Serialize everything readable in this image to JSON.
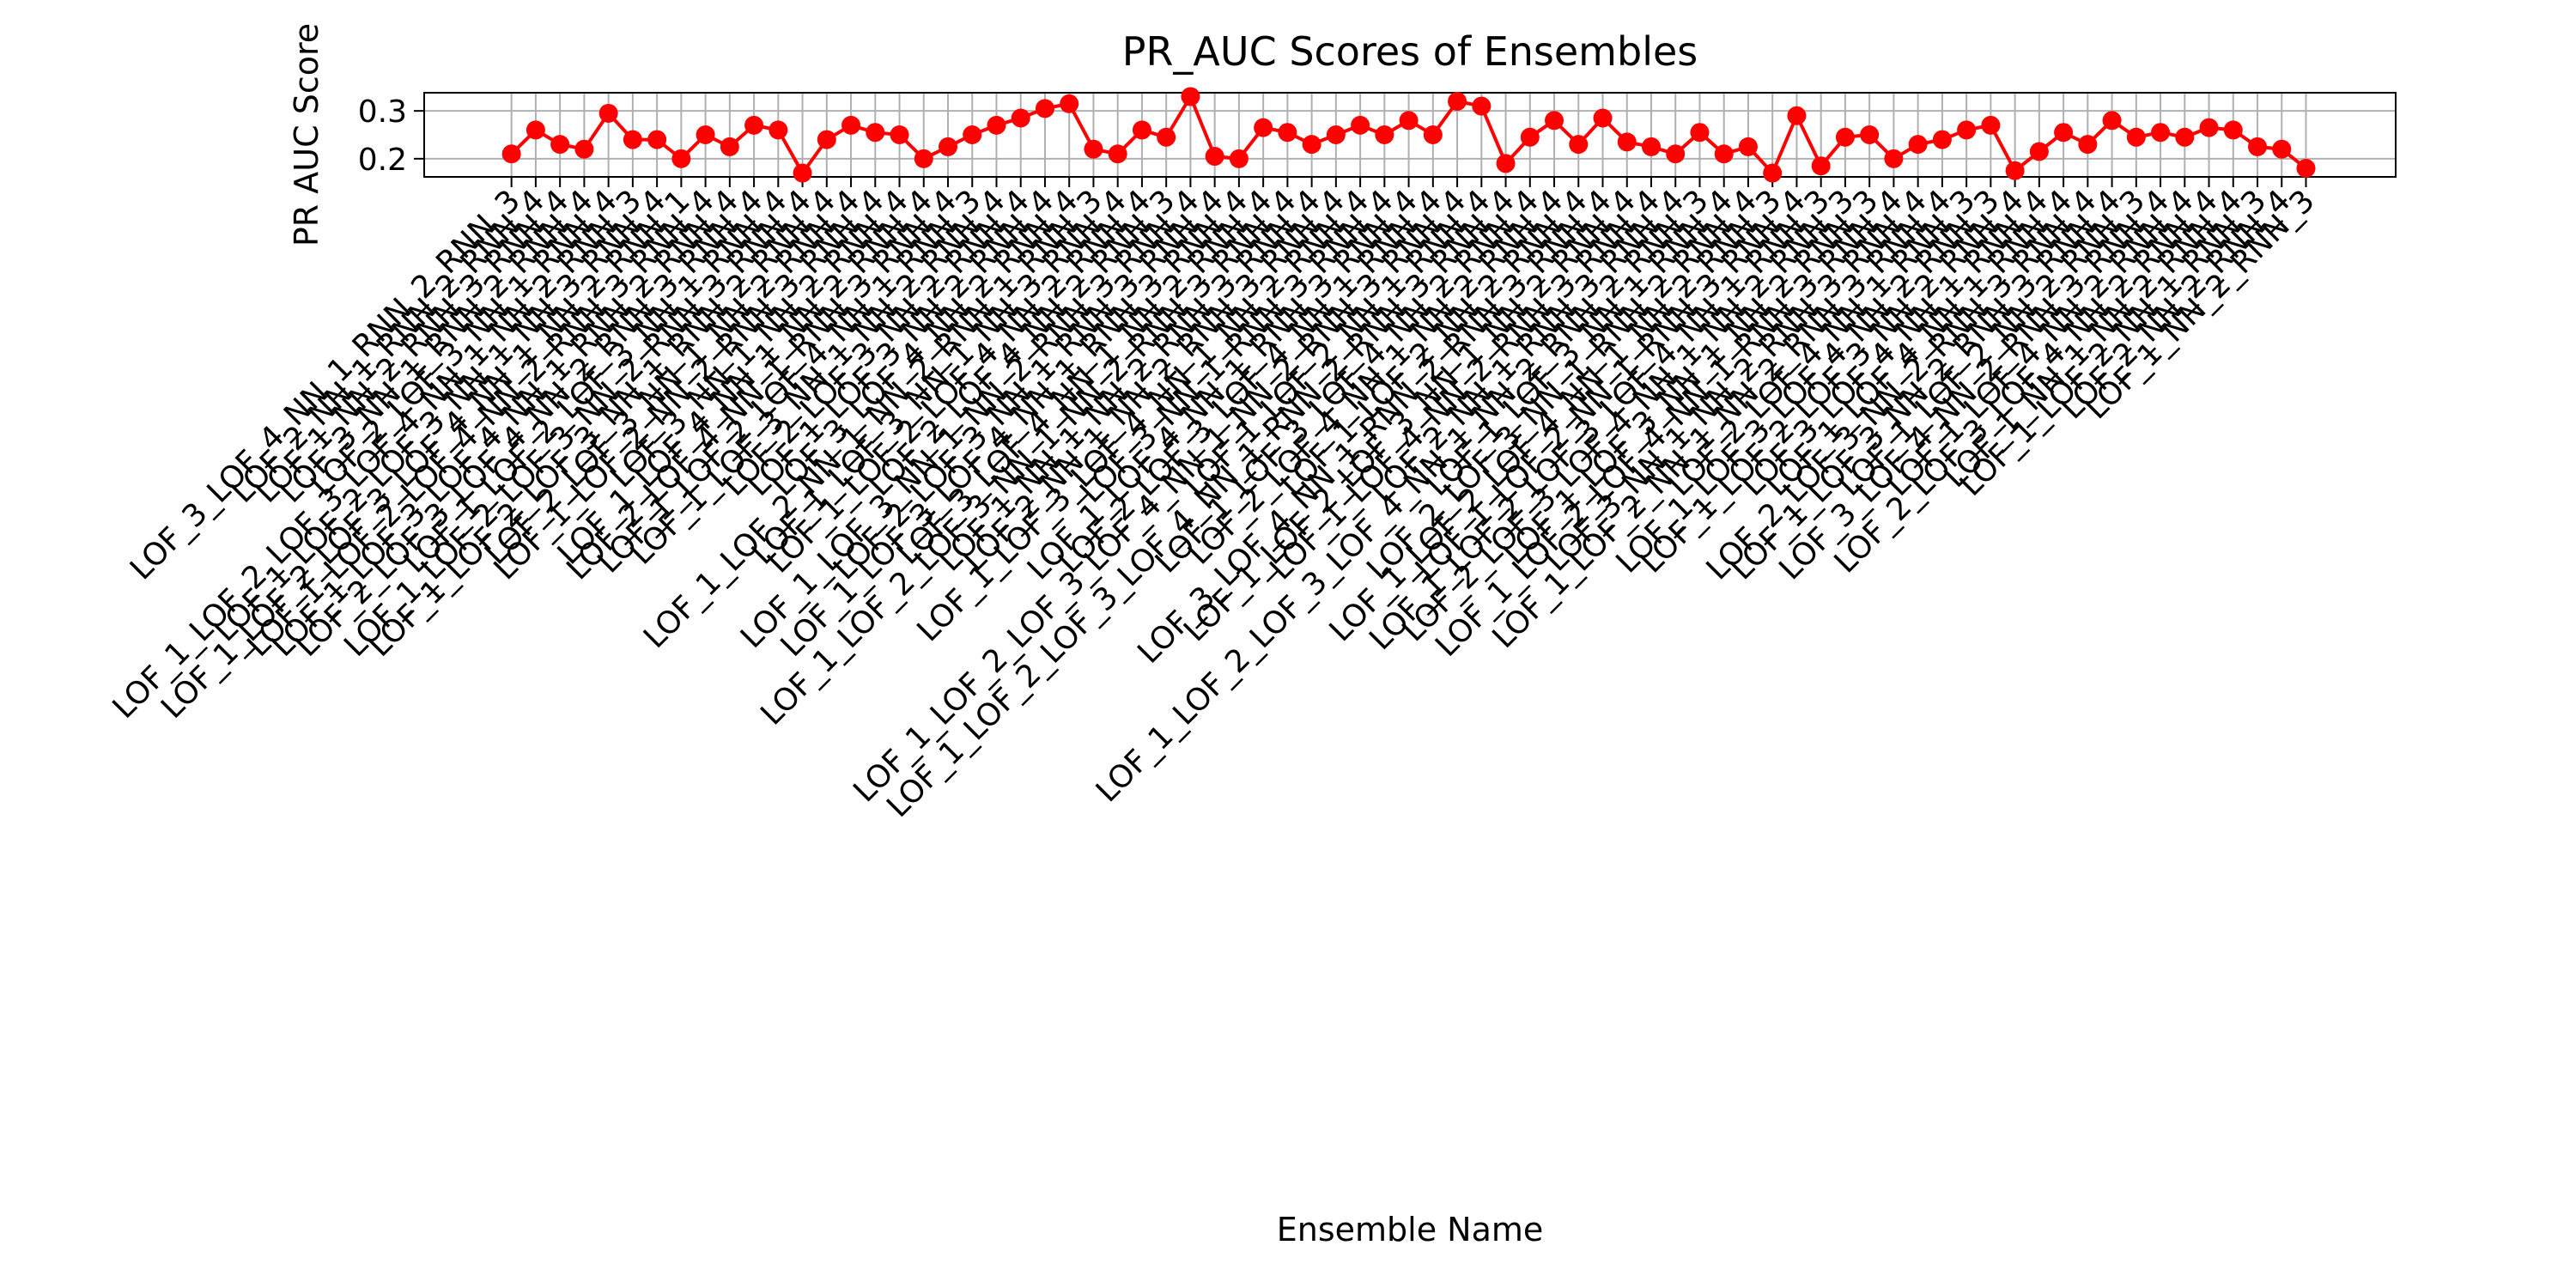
{
  "chart_data": {
    "type": "line",
    "title": "PR_AUC Scores of Ensembles",
    "x_label": "Ensemble Name",
    "y_label": "PR AUC Score",
    "categories": [
      "LOF_3_LOF_4_NN_1_RNN_2_RNN_3",
      "LOF_2_NN_1_RNN_2_RNN_4",
      "LOF_1_NN_2_RNN_3_RNN_4",
      "LOF_3_NN_1_RNN_2_RNN_4",
      "LOF_2_LOF_3_NN_1_RNN_4",
      "LOF_1_LOF_2_LOF_3_LOF_4_NN_1_NN_2_RNN_3",
      "LOF_1_LOF_2_LOF_3_NN_1_NN_3_RNN_4",
      "LOF_1_LOF_2_LOF_3_LOF_4_NN_1_NN_2_RNN_1",
      "LOF_1_LOF_2_LOF_4_NN_2_RNN_3_RNN_4",
      "LOF_1_LOF_3_LOF_4_NN_1_RNN_2_RNN_4",
      "LOF_2_LOF_3_LOF_4_NN_2_RNN_3_RNN_4",
      "LOF_1_LOF_2_LOF_3_NN_1_RNN_4",
      "LOF_1_LOF_2_LOF_3_NN_2_RNN_3_RNN_4",
      "LOF_1_LOF_2_LOF_3_NN_1_RNN_2_RNN_4",
      "LOF_2_LOF_3_NN_1_NN_2_RNN_4",
      "LOF_1_LOF_2_NN_2_RNN_3_RNN_4",
      "LOF_3_NN_1_NN_2_RNN_4",
      "LOF_1_LOF_4_NN_1_NN_2_RNN_4",
      "LOF_2_LOF_4_NN_1_RNN_3_RNN_4",
      "LOF_1_LOF_2_LOF_4_NN_1_RNN_3",
      "LOF_1_LOF_3_NN_1_NN_2_RNN_4",
      "LOF_2_LOF_3_NN_2_RNN_4",
      "LOF_1_LOF_3_NN_2_RNN_4",
      "LOF_3_LOF_4_NN_2_RNN_4",
      "LOF_1_LOF_2_NN_1_NN_2_RNN_1_RNN_3",
      "LOF_1_LOF_3_NN_1_NN_3_RNN_4",
      "LOF_1_LOF_2_LOF_4_NN_2_RNN_4",
      "LOF_2_LOF_4_NN_2_RNN_3",
      "LOF_1_LOF_3_NN_1_NN_2_RNN_3_RNN_4",
      "LOF_2_LOF_3_NN_1_RNN_3_RNN_4",
      "LOF_1_LOF_3_LOF_4_NN_1_RNN_3_RNN_4",
      "LOF_3_LOF_4_NN_1_NN_2_RNN_4",
      "LOF_1_LOF_2_LOF_3_NN_1_NN_2_RNN_3_RNN_4",
      "LOF_1_NN_1_NN_2_RNN_3_RNN_4",
      "LOF_2_NN_1_NN_2_RNN_3_RNN_4",
      "LOF_1_LOF_3_LOF_4_NN_1_NN_2_RNN_4",
      "LOF_3_NN_1_RNN_3_RNN_4",
      "LOF_1_LOF_4_NN_1_RNN_3_RNN_4",
      "LOF_2_LOF_3_LOF_4_NN_1_RNN_4",
      "LOF_1_LOF_2_LOF_3_LOF_4_NN_1_NN_2_RNN_3_RNN_4",
      "LOF_1_LOF_2_NN_1_RNN_4",
      "LOF_1_LOF_2_LOF_3_LOF_4_NN_1_RNN_2_RNN_3_RNN_4",
      "LOF_1_LOF_3_LOF_4_NN_2_RNN_4",
      "LOF_2_LOF_4_NN_1_NN_2_RNN_4",
      "LOF_1_LOF_2_NN_2_RNN_4",
      "LOF_3_LOF_4_NN_1_RNN_2_RNN_3_RNN_4",
      "LOF_1_LOF_2_LOF_3_NN_1_NN_2_RNN_4",
      "LOF_1_LOF_4_NN_2_RNN_3_RNN_4",
      "LOF_2_NN_1_RNN_3_RNN_4",
      "LOF_1_LOF_2_LOF_3_LOF_4_NN_1_NN_2_RNN_2_RNN_3",
      "LOF_1_LOF_3_NN_1_RNN_4",
      "LOF_2_LOF_3_NN_1_RNN_2_RNN_4",
      "LOF_1_LOF_2_LOF_4_NN_1_NN_2_RNN_3",
      "LOF_1_LOF_2_NN_1_RNN_3_RNN_4",
      "LOF_1_LOF_2_LOF_3_LOF_4_NN_1_RNN_3",
      "LOF_2_LOF_3_LOF_4_NN_1_NN_2_RNN_3",
      "LOF_1_LOF_3_NN_1_NN_2_RNN_3",
      "LOF_1_LOF_2_LOF_4_NN_1_RNN_3_RNN_4",
      "LOF_3_NN_1_NN_2_RNN_3_RNN_4",
      "LOF_1_LOF_2_NN_1_NN_2_RNN_3_RNN_4",
      "LOF_2_LOF_4_NN_1_RNN_3",
      "LOF_1_LOF_3_LOF_4_NN_2_RNN_3",
      "LOF_1_LOF_2_LOF_3_NN_2_RNN_4",
      "LOF_3_LOF_4_NN_1_RNN_4",
      "LOF_1_LOF_4_NN_1_RNN_4",
      "LOF_2_LOF_3_NN_2_RNN_3_RNN_4",
      "LOF_1_LOF_3_NN_2_RNN_3_RNN_4",
      "LOF_1_LOF_2_NN_2_RNN_3",
      "LOF_3_LOF_4_NN_2_RNN_3_RNN_4",
      "LOF_1_LOF_4_NN_2_RNN_4",
      "LOF_2_LOF_3_LOF_4_NN_2_RNN_4",
      "LOF_1_NN_1_NN_2_RNN_4",
      "LOF_1_LOF_2_NN_1_RNN_3",
      "LOF_2_NN_2_RNN_4",
      "LOF_1_NN_2_RNN_3"
    ],
    "values": [
      0.21,
      0.26,
      0.23,
      0.22,
      0.295,
      0.24,
      0.24,
      0.2,
      0.25,
      0.225,
      0.27,
      0.26,
      0.17,
      0.24,
      0.27,
      0.255,
      0.25,
      0.2,
      0.225,
      0.25,
      0.27,
      0.285,
      0.305,
      0.315,
      0.22,
      0.21,
      0.26,
      0.245,
      0.33,
      0.205,
      0.2,
      0.265,
      0.255,
      0.23,
      0.25,
      0.27,
      0.25,
      0.28,
      0.25,
      0.32,
      0.31,
      0.19,
      0.245,
      0.28,
      0.23,
      0.285,
      0.235,
      0.225,
      0.21,
      0.255,
      0.21,
      0.225,
      0.17,
      0.29,
      0.185,
      0.245,
      0.25,
      0.2,
      0.23,
      0.24,
      0.26,
      0.27,
      0.175,
      0.215,
      0.255,
      0.23,
      0.28,
      0.245,
      0.255,
      0.245,
      0.265,
      0.26,
      0.225,
      0.22,
      0.18
    ],
    "color": "#ff0000",
    "ylim": [
      0.162,
      0.338
    ],
    "yticks": [
      {
        "value": 0.2,
        "label": "0.2"
      },
      {
        "value": 0.3,
        "label": "0.3"
      }
    ],
    "grid": true
  }
}
